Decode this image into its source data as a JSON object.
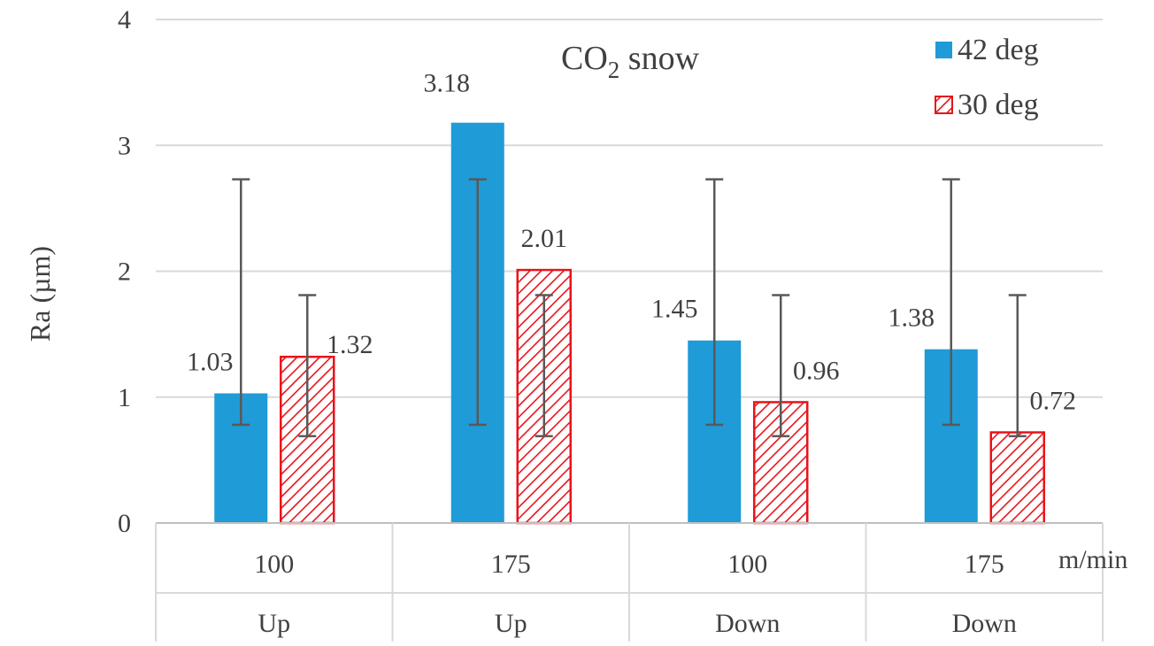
{
  "chart_data": {
    "type": "bar",
    "title": "CO",
    "title_subscript": "2",
    "title_suffix": " snow",
    "ylabel": "Ra (µm)",
    "xlabel": "m/min",
    "ylim": [
      0,
      4
    ],
    "yticks": [
      0,
      1,
      2,
      3,
      4
    ],
    "grid": true,
    "legend_position": "top-right",
    "categories": [
      {
        "speed": "100",
        "direction": "Up"
      },
      {
        "speed": "175",
        "direction": "Up"
      },
      {
        "speed": "100",
        "direction": "Down"
      },
      {
        "speed": "175",
        "direction": "Down"
      }
    ],
    "series": [
      {
        "name": "42 deg",
        "color": "#1f9bd7",
        "pattern": "solid",
        "values": [
          1.03,
          3.18,
          1.45,
          1.38
        ],
        "labels": [
          "1.03",
          "3.18",
          "1.45",
          "1.38"
        ],
        "error_low": [
          0.78,
          0.78,
          0.78,
          0.78
        ],
        "error_high": [
          2.73,
          2.73,
          2.73,
          2.73
        ]
      },
      {
        "name": "30 deg",
        "color": "#e8141c",
        "pattern": "diagonal-hatch",
        "values": [
          1.32,
          2.01,
          0.96,
          0.72
        ],
        "labels": [
          "1.32",
          "2.01",
          "0.96",
          "0.72"
        ],
        "error_low": [
          0.69,
          0.69,
          0.69,
          0.69
        ],
        "error_high": [
          1.81,
          1.81,
          1.81,
          1.81
        ]
      }
    ]
  }
}
